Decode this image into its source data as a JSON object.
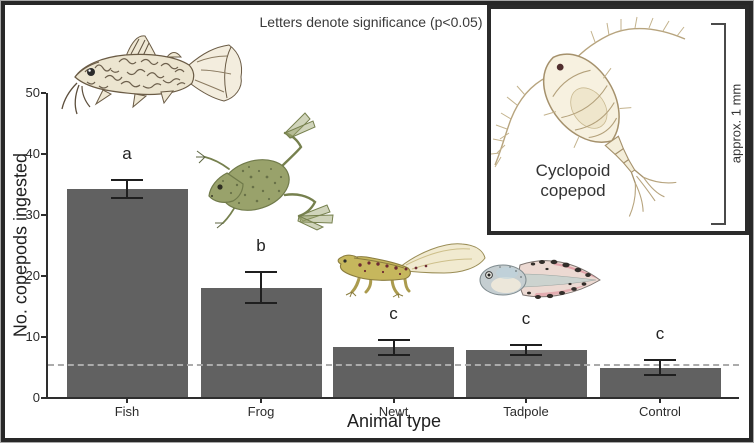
{
  "figure": {
    "annotation": "Letters denote significance (p<0.05)",
    "inset": {
      "label": "Cyclopoid copepod",
      "scale_label": "approx. 1 mm"
    },
    "illustrations": [
      "catfish-illustration",
      "clawed-frog-illustration",
      "newt-illustration",
      "tadpole-illustration",
      "copepod-illustration"
    ]
  },
  "chart_data": {
    "type": "bar",
    "title": "",
    "xlabel": "Animal type",
    "ylabel": "No. copepods ingested",
    "ylim": [
      0,
      50
    ],
    "yticks": [
      0,
      10,
      20,
      30,
      40,
      50
    ],
    "categories": [
      "Fish",
      "Frog",
      "Newt",
      "Tadpole",
      "Control"
    ],
    "values": [
      34.3,
      18.1,
      8.3,
      7.9,
      5.0
    ],
    "errors": [
      1.5,
      2.6,
      1.2,
      0.8,
      1.3
    ],
    "significance_letters": [
      "a",
      "b",
      "c",
      "c",
      "c"
    ],
    "dashed_reference_line": 5.4,
    "bar_color": "#616161",
    "grid": "off",
    "legend": "none"
  }
}
